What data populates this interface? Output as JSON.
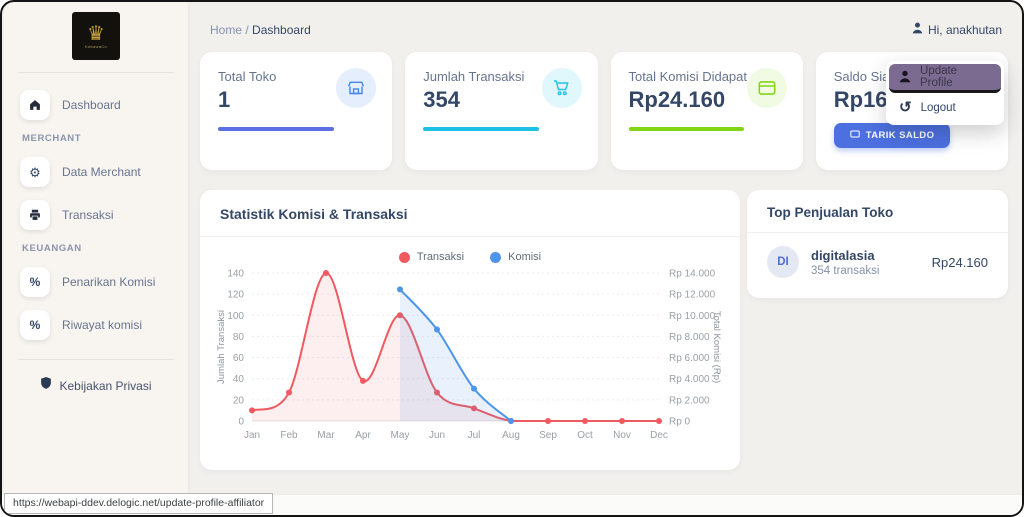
{
  "colors": {
    "accent_indigo": "#5a6fe4",
    "accent_cyan": "#1fc0e7",
    "accent_lime": "#82d616",
    "accent_blue_button": "#4c70e0",
    "dropdown_highlight": "#7b6b91",
    "series_red": "#f0595f",
    "series_blue": "#4d94ea",
    "text_dark": "#344767",
    "text_muted": "#67748e"
  },
  "sidebar": {
    "logo_text": "KebawaCo",
    "sections": {
      "merchant": "MERCHANT",
      "keuangan": "KEUANGAN"
    },
    "items": {
      "dashboard": "Dashboard",
      "data_merchant": "Data Merchant",
      "transaksi": "Transaksi",
      "penarikan": "Penarikan Komisi",
      "riwayat": "Riwayat komisi",
      "privacy": "Kebijakan Privasi"
    }
  },
  "header": {
    "breadcrumb_home": "Home",
    "breadcrumb_separator": "/",
    "breadcrumb_current": "Dashboard",
    "user_greeting": "Hi, anakhutan"
  },
  "stats": [
    {
      "title": "Total Toko",
      "value": "1",
      "icon": "store-icon"
    },
    {
      "title": "Jumlah Transaksi",
      "value": "354",
      "icon": "cart-icon"
    },
    {
      "title": "Total Komisi Didapat",
      "value": "Rp24.160",
      "icon": "wallet-icon"
    },
    {
      "title": "Saldo Siap",
      "value": "Rp169",
      "button_label": "TARIK SALDO"
    }
  ],
  "chart_data": {
    "type": "line",
    "title": "Statistik Komisi & Transaksi",
    "categories": [
      "Jan",
      "Feb",
      "Mar",
      "Apr",
      "May",
      "Jun",
      "Jul",
      "Aug",
      "Sep",
      "Oct",
      "Nov",
      "Dec"
    ],
    "series": [
      {
        "name": "Transaksi",
        "axis": "left",
        "color": "#f0595f",
        "fill": "rgba(240,89,95,0.10)",
        "values": [
          10,
          27,
          140,
          38,
          100,
          27,
          12,
          0,
          0,
          0,
          0,
          0
        ]
      },
      {
        "name": "Komisi",
        "axis": "right",
        "color": "#4d94ea",
        "fill": "rgba(77,148,234,0.12)",
        "values": [
          null,
          null,
          null,
          null,
          12450,
          8650,
          3060,
          0,
          null,
          null,
          null,
          null
        ]
      }
    ],
    "left_axis": {
      "title": "Jumlah Transaksi",
      "min": 0,
      "max": 140,
      "step": 20
    },
    "right_axis": {
      "title": "Total Komisi (Rp)",
      "min": 0,
      "max": 14000,
      "step": 2000,
      "tick_labels": [
        "Rp 0",
        "Rp 2.000",
        "Rp 4.000",
        "Rp 6.000",
        "Rp 8.000",
        "Rp 10.000",
        "Rp 12.000",
        "Rp 14.000"
      ]
    },
    "legend_position": "top",
    "grid": "dashed-horizontal"
  },
  "top_penjualan": {
    "title": "Top Penjualan Toko",
    "items": [
      {
        "initials": "DI",
        "name": "digitalasia",
        "sub": "354 transaksi",
        "amount": "Rp24.160"
      }
    ]
  },
  "dropdown": {
    "items": [
      {
        "label": "Update Profile",
        "icon": "person-icon",
        "active": true
      },
      {
        "label": "Logout",
        "icon": "history-icon",
        "active": false
      }
    ]
  },
  "statusbar": {
    "url": "https://webapi-ddev.delogic.net/update-profile-affiliator"
  }
}
